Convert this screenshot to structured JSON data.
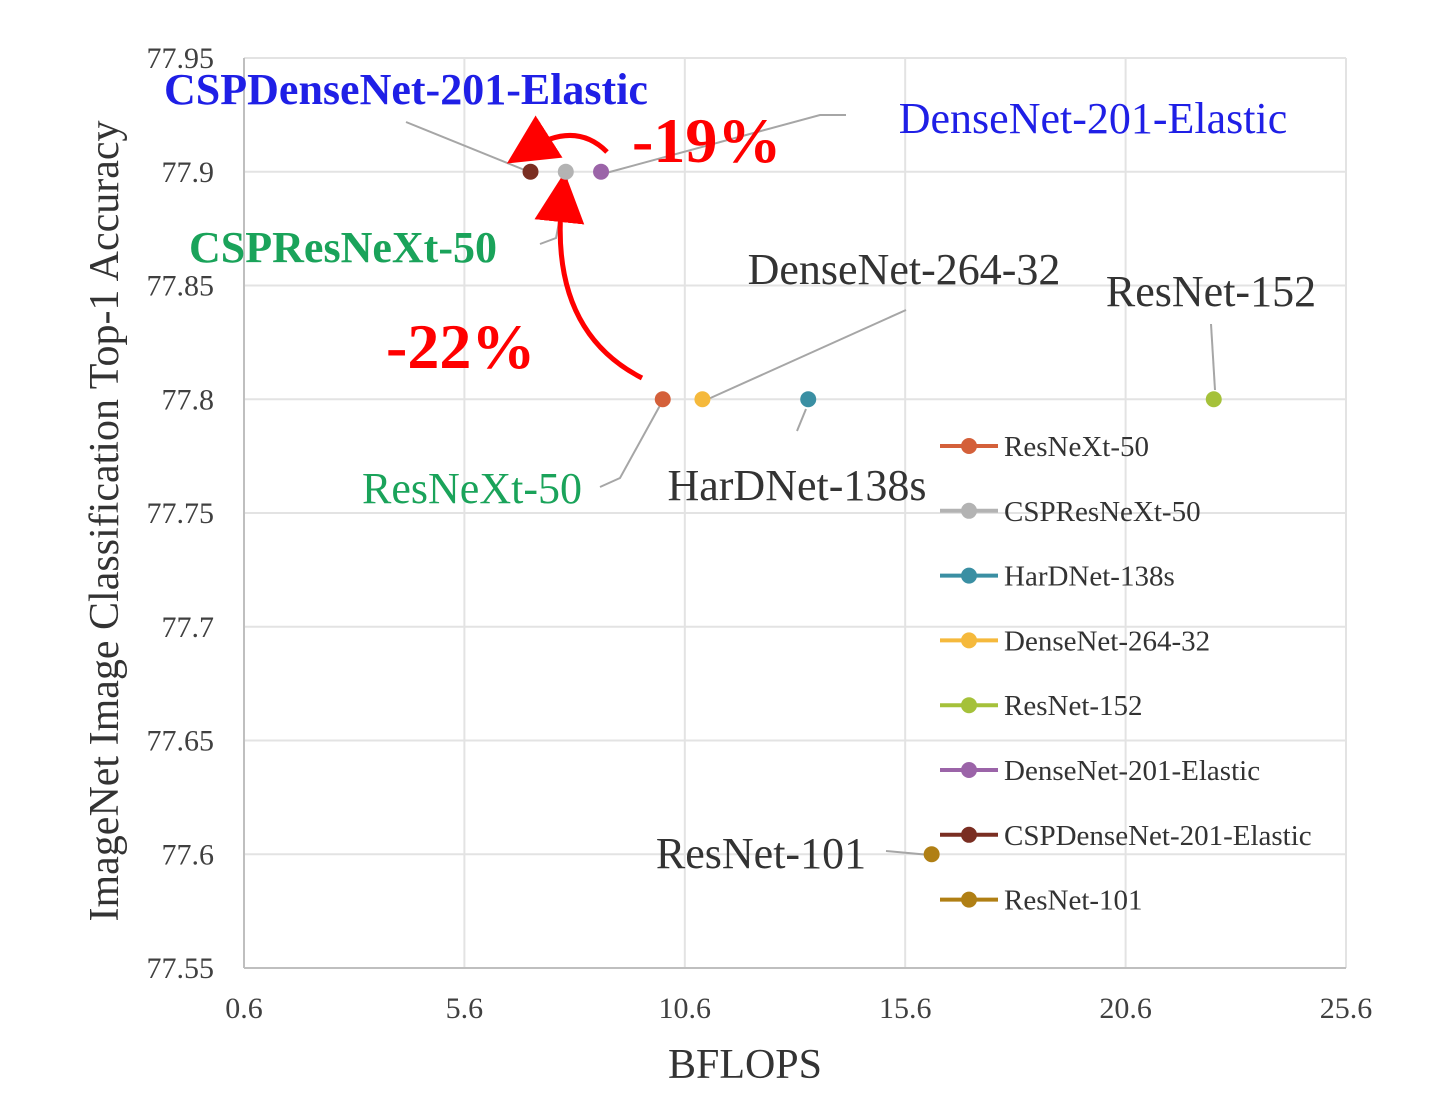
{
  "chart_data": {
    "type": "scatter",
    "title": "",
    "xlabel": "BFLOPS",
    "ylabel": "ImageNet Image Classification Top-1 Accuracy",
    "xlim": [
      0.6,
      25.6
    ],
    "ylim": [
      77.55,
      77.95
    ],
    "xticks": [
      "0.6",
      "5.6",
      "10.6",
      "15.6",
      "20.6",
      "25.6"
    ],
    "yticks": [
      "77.55",
      "77.6",
      "77.65",
      "77.7",
      "77.75",
      "77.8",
      "77.85",
      "77.9",
      "77.95"
    ],
    "grid": true,
    "legend_position": "bottom-right",
    "series": [
      {
        "name": "ResNeXt-50",
        "x": 10.1,
        "y": 77.8,
        "color": "#d4603a",
        "label": "ResNeXt-50",
        "label_color": "#1aa35a",
        "label_bold": false
      },
      {
        "name": "CSPResNeXt-50",
        "x": 7.9,
        "y": 77.9,
        "color": "#b3b3b3",
        "label": "CSPResNeXt-50",
        "label_color": "#1aa35a",
        "label_bold": true
      },
      {
        "name": "HarDNet-138s",
        "x": 13.4,
        "y": 77.8,
        "color": "#3a8fa3",
        "label": "HarDNet-138s",
        "label_color": "#333333",
        "label_bold": false
      },
      {
        "name": "DenseNet-264-32",
        "x": 11.0,
        "y": 77.8,
        "color": "#f5b93c",
        "label": "DenseNet-264-32",
        "label_color": "#333333",
        "label_bold": false
      },
      {
        "name": "ResNet-152",
        "x": 22.6,
        "y": 77.8,
        "color": "#a5c13a",
        "label": "ResNet-152",
        "label_color": "#333333",
        "label_bold": false
      },
      {
        "name": "DenseNet-201-Elastic",
        "x": 8.7,
        "y": 77.9,
        "color": "#9b64a8",
        "label": "DenseNet-201-Elastic",
        "label_color": "#1f1fe6",
        "label_bold": false
      },
      {
        "name": "CSPDenseNet-201-Elastic",
        "x": 7.1,
        "y": 77.9,
        "color": "#7a2e22",
        "label": "CSPDenseNet-201-Elastic",
        "label_color": "#1f1fe6",
        "label_bold": true
      },
      {
        "name": "ResNet-101",
        "x": 16.2,
        "y": 77.6,
        "color": "#b07f14",
        "label": "ResNet-101",
        "label_color": "#333333",
        "label_bold": false
      }
    ],
    "annotations": [
      {
        "text": "-19%",
        "color": "#ff0000"
      },
      {
        "text": "-22%",
        "color": "#ff0000"
      }
    ]
  }
}
